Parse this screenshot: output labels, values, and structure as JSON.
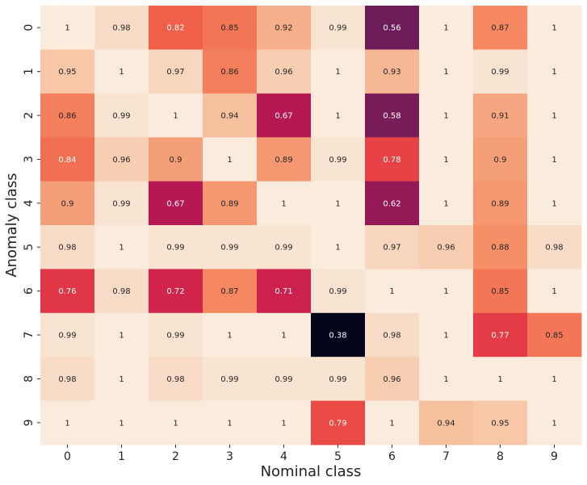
{
  "chart_data": {
    "type": "heatmap",
    "xlabel": "Nominal class",
    "ylabel": "Anomaly class",
    "x_categories": [
      "0",
      "1",
      "2",
      "3",
      "4",
      "5",
      "6",
      "7",
      "8",
      "9"
    ],
    "y_categories": [
      "0",
      "1",
      "2",
      "3",
      "4",
      "5",
      "6",
      "7",
      "8",
      "9"
    ],
    "values": [
      [
        1,
        0.98,
        0.82,
        0.85,
        0.92,
        0.99,
        0.56,
        1,
        0.87,
        1
      ],
      [
        0.95,
        1,
        0.97,
        0.86,
        0.96,
        1,
        0.93,
        1,
        0.99,
        1
      ],
      [
        0.86,
        0.99,
        1,
        0.94,
        0.67,
        1,
        0.58,
        1,
        0.91,
        1
      ],
      [
        0.84,
        0.96,
        0.9,
        1,
        0.89,
        0.99,
        0.78,
        1,
        0.9,
        1
      ],
      [
        0.9,
        0.99,
        0.67,
        0.89,
        1,
        1,
        0.62,
        1,
        0.89,
        1
      ],
      [
        0.98,
        1,
        0.99,
        0.99,
        0.99,
        1,
        0.97,
        0.96,
        0.88,
        0.98
      ],
      [
        0.76,
        0.98,
        0.72,
        0.87,
        0.71,
        0.99,
        1,
        1,
        0.85,
        1
      ],
      [
        0.99,
        1,
        0.99,
        1,
        1,
        0.38,
        0.98,
        1,
        0.77,
        0.85
      ],
      [
        0.98,
        1,
        0.98,
        0.99,
        0.99,
        0.99,
        0.96,
        1,
        1,
        1
      ],
      [
        1,
        1,
        1,
        1,
        1,
        0.79,
        1,
        0.94,
        0.95,
        1
      ]
    ],
    "value_range": [
      0.38,
      1
    ],
    "colormap": "rocket",
    "grid": false,
    "legend": "none"
  }
}
